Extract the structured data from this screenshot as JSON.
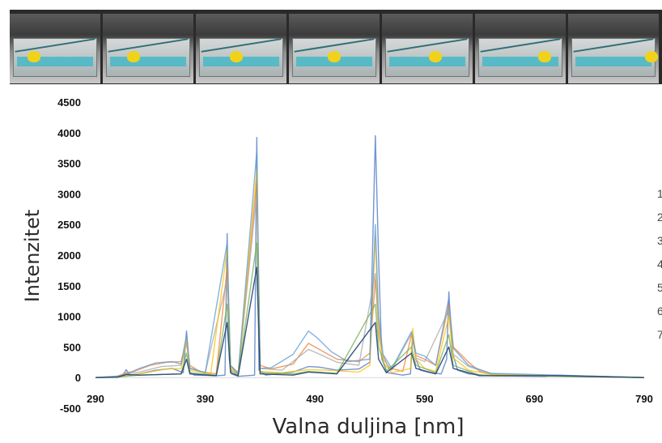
{
  "chart_data": {
    "type": "line",
    "xlabel": "Valna duljina [nm]",
    "ylabel": "Intenzitet",
    "xlim": [
      290,
      790
    ],
    "ylim": [
      -500,
      4500
    ],
    "x_ticks": [
      "290",
      "390",
      "490",
      "590",
      "690",
      "790"
    ],
    "y_ticks": [
      "4500",
      "4000",
      "3500",
      "3000",
      "2500",
      "2000",
      "1500",
      "1000",
      "500",
      "0",
      "-500"
    ],
    "grid": false,
    "legend_marks": [
      "1",
      "2",
      "3",
      "4",
      "5",
      "6",
      "7"
    ],
    "series": [
      {
        "color": "#4472c4",
        "points": [
          [
            290,
            0
          ],
          [
            305,
            5
          ],
          [
            315,
            40
          ],
          [
            318,
            130
          ],
          [
            321,
            40
          ],
          [
            330,
            60
          ],
          [
            345,
            120
          ],
          [
            360,
            150
          ],
          [
            370,
            80
          ],
          [
            373,
            760
          ],
          [
            376,
            90
          ],
          [
            380,
            40
          ],
          [
            400,
            30
          ],
          [
            408,
            40
          ],
          [
            410,
            2350
          ],
          [
            412,
            300
          ],
          [
            414,
            60
          ],
          [
            420,
            20
          ],
          [
            435,
            40
          ],
          [
            437,
            3920
          ],
          [
            439,
            120
          ],
          [
            445,
            40
          ],
          [
            470,
            90
          ],
          [
            484,
            180
          ],
          [
            494,
            170
          ],
          [
            510,
            120
          ],
          [
            530,
            140
          ],
          [
            540,
            250
          ],
          [
            545,
            3950
          ],
          [
            548,
            1950
          ],
          [
            551,
            300
          ],
          [
            556,
            80
          ],
          [
            570,
            40
          ],
          [
            577,
            60
          ],
          [
            579,
            680
          ],
          [
            582,
            300
          ],
          [
            586,
            120
          ],
          [
            595,
            80
          ],
          [
            605,
            60
          ],
          [
            610,
            300
          ],
          [
            612,
            1400
          ],
          [
            615,
            420
          ],
          [
            620,
            120
          ],
          [
            630,
            60
          ],
          [
            650,
            30
          ],
          [
            700,
            20
          ],
          [
            710,
            40
          ],
          [
            790,
            0
          ]
        ]
      },
      {
        "color": "#ed7d31",
        "points": [
          [
            290,
            0
          ],
          [
            310,
            20
          ],
          [
            318,
            80
          ],
          [
            325,
            100
          ],
          [
            340,
            200
          ],
          [
            355,
            250
          ],
          [
            368,
            260
          ],
          [
            373,
            600
          ],
          [
            376,
            200
          ],
          [
            385,
            100
          ],
          [
            400,
            60
          ],
          [
            410,
            1800
          ],
          [
            413,
            200
          ],
          [
            420,
            80
          ],
          [
            437,
            3200
          ],
          [
            440,
            200
          ],
          [
            450,
            140
          ],
          [
            470,
            220
          ],
          [
            484,
            560
          ],
          [
            492,
            480
          ],
          [
            510,
            300
          ],
          [
            530,
            260
          ],
          [
            540,
            400
          ],
          [
            545,
            1600
          ],
          [
            548,
            900
          ],
          [
            551,
            400
          ],
          [
            557,
            160
          ],
          [
            570,
            100
          ],
          [
            578,
            700
          ],
          [
            582,
            360
          ],
          [
            590,
            300
          ],
          [
            600,
            200
          ],
          [
            612,
            1200
          ],
          [
            616,
            500
          ],
          [
            630,
            250
          ],
          [
            640,
            100
          ],
          [
            660,
            40
          ],
          [
            790,
            0
          ]
        ]
      },
      {
        "color": "#a5a5a5",
        "points": [
          [
            290,
            0
          ],
          [
            310,
            10
          ],
          [
            318,
            60
          ],
          [
            330,
            90
          ],
          [
            350,
            180
          ],
          [
            368,
            200
          ],
          [
            373,
            560
          ],
          [
            376,
            160
          ],
          [
            390,
            80
          ],
          [
            410,
            1600
          ],
          [
            413,
            180
          ],
          [
            420,
            60
          ],
          [
            437,
            3000
          ],
          [
            440,
            150
          ],
          [
            460,
            120
          ],
          [
            484,
            460
          ],
          [
            492,
            400
          ],
          [
            510,
            250
          ],
          [
            530,
            200
          ],
          [
            545,
            1700
          ],
          [
            548,
            700
          ],
          [
            552,
            300
          ],
          [
            560,
            120
          ],
          [
            578,
            720
          ],
          [
            582,
            320
          ],
          [
            590,
            260
          ],
          [
            612,
            1100
          ],
          [
            616,
            380
          ],
          [
            630,
            180
          ],
          [
            650,
            60
          ],
          [
            790,
            0
          ]
        ]
      },
      {
        "color": "#ffc000",
        "points": [
          [
            290,
            0
          ],
          [
            310,
            10
          ],
          [
            330,
            60
          ],
          [
            355,
            140
          ],
          [
            368,
            150
          ],
          [
            373,
            650
          ],
          [
            376,
            120
          ],
          [
            395,
            60
          ],
          [
            410,
            2100
          ],
          [
            413,
            150
          ],
          [
            420,
            50
          ],
          [
            437,
            3400
          ],
          [
            440,
            100
          ],
          [
            460,
            80
          ],
          [
            484,
            130
          ],
          [
            500,
            120
          ],
          [
            530,
            90
          ],
          [
            540,
            200
          ],
          [
            545,
            2300
          ],
          [
            548,
            800
          ],
          [
            552,
            250
          ],
          [
            560,
            80
          ],
          [
            577,
            150
          ],
          [
            579,
            800
          ],
          [
            582,
            300
          ],
          [
            590,
            150
          ],
          [
            600,
            100
          ],
          [
            612,
            1000
          ],
          [
            616,
            320
          ],
          [
            630,
            120
          ],
          [
            650,
            50
          ],
          [
            790,
            0
          ]
        ]
      },
      {
        "color": "#5b9bd5",
        "points": [
          [
            290,
            0
          ],
          [
            315,
            30
          ],
          [
            330,
            150
          ],
          [
            345,
            240
          ],
          [
            360,
            260
          ],
          [
            368,
            220
          ],
          [
            373,
            700
          ],
          [
            376,
            150
          ],
          [
            390,
            80
          ],
          [
            410,
            2200
          ],
          [
            413,
            200
          ],
          [
            420,
            60
          ],
          [
            437,
            3700
          ],
          [
            440,
            150
          ],
          [
            450,
            160
          ],
          [
            470,
            380
          ],
          [
            484,
            760
          ],
          [
            492,
            650
          ],
          [
            505,
            420
          ],
          [
            520,
            260
          ],
          [
            540,
            300
          ],
          [
            545,
            2500
          ],
          [
            548,
            1000
          ],
          [
            552,
            380
          ],
          [
            560,
            150
          ],
          [
            578,
            750
          ],
          [
            582,
            400
          ],
          [
            590,
            350
          ],
          [
            600,
            200
          ],
          [
            612,
            1300
          ],
          [
            616,
            480
          ],
          [
            630,
            200
          ],
          [
            650,
            70
          ],
          [
            790,
            0
          ]
        ]
      },
      {
        "color": "#70ad47",
        "points": [
          [
            290,
            0
          ],
          [
            310,
            10
          ],
          [
            330,
            40
          ],
          [
            368,
            60
          ],
          [
            373,
            400
          ],
          [
            376,
            80
          ],
          [
            400,
            40
          ],
          [
            410,
            1200
          ],
          [
            413,
            120
          ],
          [
            420,
            40
          ],
          [
            437,
            2200
          ],
          [
            440,
            80
          ],
          [
            470,
            60
          ],
          [
            484,
            100
          ],
          [
            510,
            70
          ],
          [
            545,
            1200
          ],
          [
            548,
            500
          ],
          [
            555,
            100
          ],
          [
            578,
            500
          ],
          [
            582,
            200
          ],
          [
            600,
            80
          ],
          [
            612,
            700
          ],
          [
            616,
            200
          ],
          [
            640,
            40
          ],
          [
            790,
            0
          ]
        ]
      },
      {
        "color": "#264478",
        "points": [
          [
            290,
            0
          ],
          [
            310,
            5
          ],
          [
            318,
            50
          ],
          [
            330,
            40
          ],
          [
            368,
            60
          ],
          [
            373,
            300
          ],
          [
            376,
            60
          ],
          [
            400,
            30
          ],
          [
            410,
            900
          ],
          [
            413,
            80
          ],
          [
            420,
            30
          ],
          [
            437,
            1800
          ],
          [
            440,
            60
          ],
          [
            470,
            40
          ],
          [
            484,
            90
          ],
          [
            510,
            60
          ],
          [
            545,
            900
          ],
          [
            548,
            300
          ],
          [
            555,
            80
          ],
          [
            578,
            400
          ],
          [
            582,
            150
          ],
          [
            600,
            60
          ],
          [
            612,
            500
          ],
          [
            616,
            150
          ],
          [
            640,
            30
          ],
          [
            710,
            30
          ],
          [
            790,
            0
          ]
        ]
      }
    ]
  }
}
